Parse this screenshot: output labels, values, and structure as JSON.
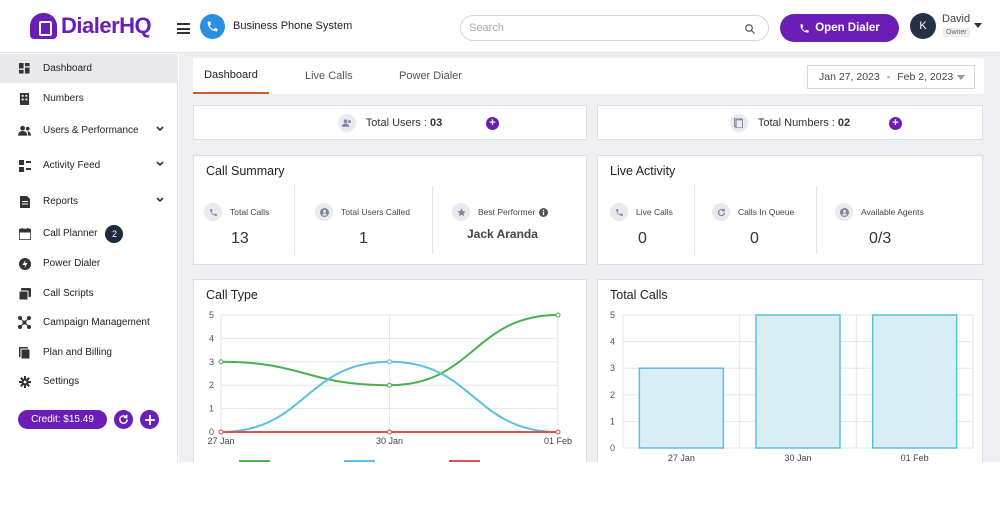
{
  "brand": {
    "name": "DialerHQ"
  },
  "header": {
    "title": "Business Phone System",
    "search_placeholder": "Search",
    "open_dialer_label": "Open Dialer"
  },
  "user": {
    "initial": "K",
    "name": "David",
    "role": "Owner"
  },
  "sidebar": {
    "items": [
      {
        "label": "Dashboard",
        "icon": "dashboard-icon",
        "active": true
      },
      {
        "label": "Numbers",
        "icon": "building-icon"
      },
      {
        "label": "Users & Performance",
        "icon": "users-icon",
        "expandable": true
      },
      {
        "label": "Activity Feed",
        "icon": "activity-icon",
        "expandable": true
      },
      {
        "label": "Reports",
        "icon": "report-icon",
        "expandable": true
      },
      {
        "label": "Call Planner",
        "icon": "calendar-icon",
        "badge": "2"
      },
      {
        "label": "Power Dialer",
        "icon": "power-icon"
      },
      {
        "label": "Call Scripts",
        "icon": "script-icon"
      },
      {
        "label": "Campaign Management",
        "icon": "campaign-icon"
      },
      {
        "label": "Plan and Billing",
        "icon": "billing-icon"
      },
      {
        "label": "Settings",
        "icon": "gear-icon"
      }
    ],
    "credit_label": "Credit: $15.49"
  },
  "tabs": [
    {
      "label": "Dashboard",
      "active": true
    },
    {
      "label": "Live Calls"
    },
    {
      "label": "Power Dialer"
    }
  ],
  "date_range": {
    "start": "Jan 27, 2023",
    "separator": "-",
    "end": "Feb 2, 2023"
  },
  "totals": {
    "users_label": "Total Users : ",
    "users_value": "03",
    "numbers_label": "Total Numbers : ",
    "numbers_value": "02"
  },
  "call_summary": {
    "title": "Call Summary",
    "metrics": [
      {
        "label": "Total Calls",
        "value": "13",
        "icon": "phone-icon"
      },
      {
        "label": "Total Users Called",
        "value": "1",
        "icon": "user-icon"
      },
      {
        "label": "Best Performer",
        "value": "Jack Aranda",
        "icon": "star-icon",
        "info": true
      }
    ]
  },
  "live_activity": {
    "title": "Live Activity",
    "metrics": [
      {
        "label": "Live Calls",
        "value": "0",
        "icon": "phone-call-icon"
      },
      {
        "label": "Calls In Queue",
        "value": "0",
        "icon": "queue-icon"
      },
      {
        "label": "Available Agents",
        "value": "0/3",
        "icon": "agent-icon"
      }
    ]
  },
  "colors": {
    "brand": "#6a1eb5",
    "green": "#4caf50",
    "blue": "#5bc0de",
    "red": "#d9534f",
    "bar_fill": "#d9eef6",
    "bar_stroke": "#5bc0de"
  },
  "chart_data": [
    {
      "type": "line",
      "title": "Call Type",
      "x": [
        "27 Jan",
        "30 Jan",
        "01 Feb"
      ],
      "ylim": [
        0,
        5
      ],
      "yticks": [
        0,
        1,
        2,
        3,
        4,
        5
      ],
      "grid": true,
      "series": [
        {
          "values": [
            3,
            2,
            5
          ],
          "color": "#4caf50"
        },
        {
          "values": [
            0,
            3,
            0
          ],
          "color": "#5bc0de"
        },
        {
          "values": [
            0,
            0,
            0
          ],
          "color": "#d9534f"
        }
      ]
    },
    {
      "type": "bar",
      "title": "Total Calls",
      "categories": [
        "27 Jan",
        "30 Jan",
        "01 Feb"
      ],
      "values": [
        3,
        5,
        5
      ],
      "ylim": [
        0,
        5
      ],
      "yticks": [
        0,
        1,
        2,
        3,
        4,
        5
      ],
      "grid": true
    }
  ]
}
